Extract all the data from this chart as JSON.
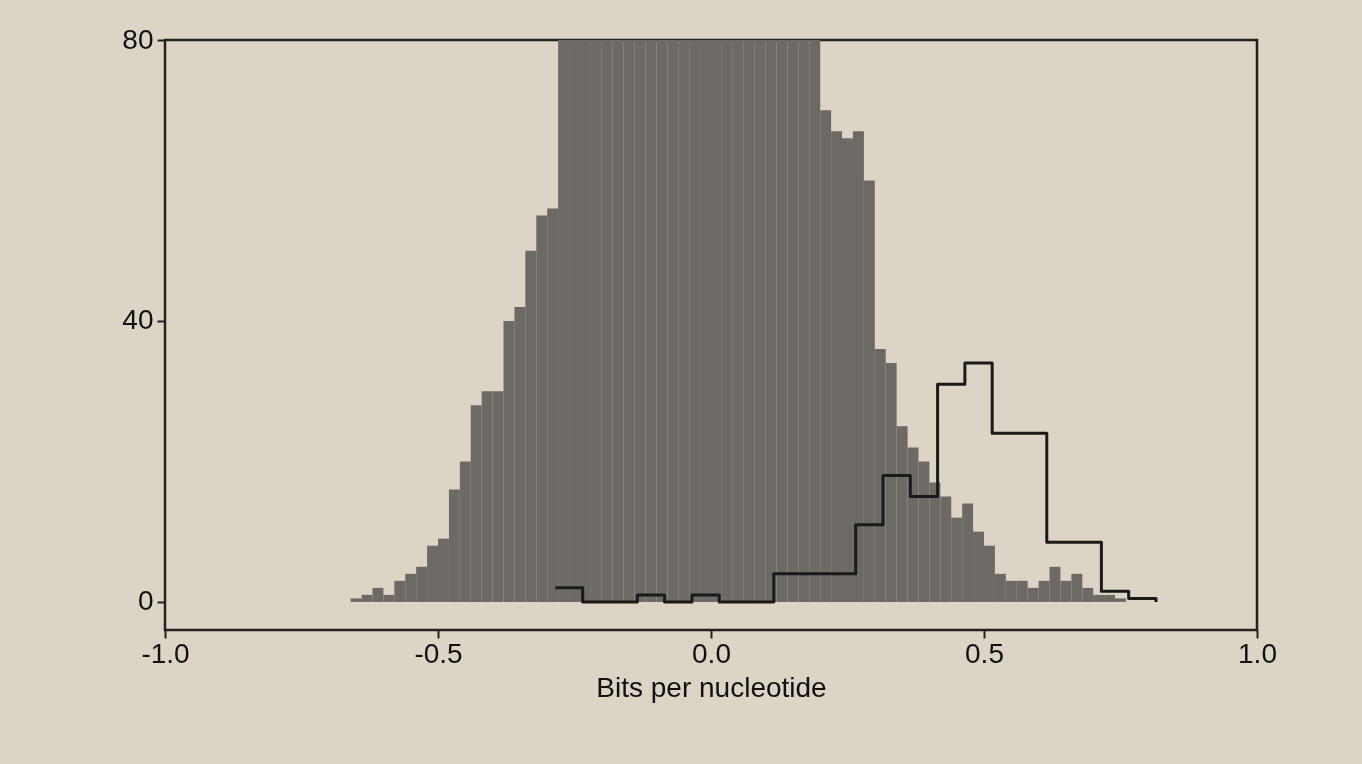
{
  "chart_data": {
    "type": "histogram",
    "xlabel": "Bits per nucleotide",
    "xlim": [
      -1,
      1
    ],
    "xticks": [
      {
        "value": -1,
        "label": "-1.0"
      },
      {
        "value": -0.5,
        "label": "-0.5"
      },
      {
        "value": 0,
        "label": "0.0"
      },
      {
        "value": 0.5,
        "label": "0.5"
      },
      {
        "value": 1,
        "label": "1.0"
      }
    ],
    "ylim": [
      -4,
      80
    ],
    "yticks": [
      0,
      40,
      80
    ],
    "grid": false,
    "series": [
      {
        "type": "histogram",
        "color": "#6d6965",
        "bins": [
          -0.66,
          -0.64,
          -0.62,
          -0.6,
          -0.58,
          -0.56,
          -0.54,
          -0.52,
          -0.5,
          -0.48,
          -0.46,
          -0.44,
          -0.42,
          -0.4,
          -0.38,
          -0.36,
          -0.34,
          -0.32,
          -0.3,
          -0.28,
          -0.26,
          -0.24,
          -0.22,
          -0.2,
          -0.18,
          -0.16,
          -0.14,
          -0.12,
          -0.1,
          -0.08,
          -0.06,
          -0.04,
          -0.02,
          0,
          0.02,
          0.04,
          0.06,
          0.08,
          0.1,
          0.12,
          0.14,
          0.16,
          0.18,
          0.2,
          0.22,
          0.24,
          0.26,
          0.28,
          0.3,
          0.32,
          0.34,
          0.36,
          0.38,
          0.4,
          0.42,
          0.44,
          0.46,
          0.48,
          0.5,
          0.52,
          0.54,
          0.56,
          0.58,
          0.6,
          0.62,
          0.64,
          0.66,
          0.68,
          0.7,
          0.72,
          0.74,
          0.76
        ],
        "values": [
          0.5,
          1,
          2,
          1,
          3,
          4,
          5,
          8,
          9,
          16,
          20,
          28,
          30,
          30,
          40,
          42,
          50,
          55,
          56,
          80,
          80,
          80,
          80,
          80,
          80,
          80,
          80,
          80,
          80,
          80,
          80,
          80,
          80,
          80,
          80,
          80,
          80,
          80,
          80,
          80,
          80,
          80,
          80,
          70,
          67,
          66,
          67,
          60,
          36,
          34,
          25,
          22,
          20,
          17,
          15,
          12,
          14,
          10,
          8,
          4,
          3,
          3,
          2,
          3,
          5,
          3,
          4,
          2,
          1,
          1,
          0.5
        ]
      },
      {
        "type": "step",
        "color": "#1a1a1a",
        "x": [
          -0.285,
          -0.235,
          -0.185,
          -0.135,
          -0.085,
          -0.035,
          0.015,
          0.065,
          0.115,
          0.165,
          0.215,
          0.265,
          0.315,
          0.365,
          0.415,
          0.465,
          0.515,
          0.565,
          0.615,
          0.665,
          0.715,
          0.765,
          0.815
        ],
        "values": [
          2,
          0,
          0,
          1,
          0,
          1,
          0,
          0,
          4,
          4,
          4,
          11,
          18,
          15,
          31,
          34,
          24,
          24,
          8.5,
          8.5,
          1.5,
          0.5,
          0
        ]
      }
    ]
  }
}
